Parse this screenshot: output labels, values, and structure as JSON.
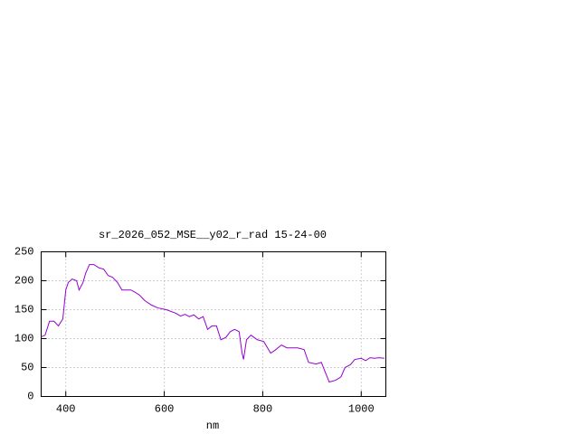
{
  "chart_data": {
    "type": "line",
    "title": "sr_2026_052_MSE__y02_r_rad 15-24-00",
    "x_label": "nm",
    "xlim": [
      350,
      1050
    ],
    "ylim": [
      0,
      250
    ],
    "xticks": [
      400,
      600,
      800,
      1000
    ],
    "yticks": [
      0,
      50,
      100,
      150,
      200,
      250
    ],
    "grid": true,
    "x": [
      350,
      358,
      367,
      376,
      385,
      394,
      400,
      405,
      413,
      422,
      427,
      435,
      440,
      448,
      457,
      468,
      477,
      486,
      495,
      505,
      514,
      532,
      541,
      550,
      560,
      574,
      587,
      604,
      623,
      633,
      642,
      651,
      660,
      670,
      679,
      688,
      697,
      706,
      715,
      725,
      734,
      743,
      752,
      758,
      761,
      767,
      776,
      789,
      802,
      816,
      825,
      838,
      849,
      871,
      884,
      893,
      908,
      919,
      926,
      935,
      948,
      959,
      967,
      978,
      987,
      1000,
      1009,
      1018,
      1027,
      1036,
      1047
    ],
    "series": [
      {
        "color": "#9400d3",
        "values": [
          103,
          106,
          130,
          130,
          122,
          134,
          184,
          197,
          203,
          200,
          184,
          197,
          212,
          228,
          228,
          222,
          220,
          209,
          206,
          197,
          184,
          184,
          180,
          175,
          166,
          158,
          153,
          150,
          144,
          139,
          142,
          138,
          141,
          134,
          138,
          116,
          122,
          122,
          98,
          102,
          112,
          116,
          112,
          75,
          64,
          98,
          106,
          98,
          95,
          75,
          80,
          89,
          84,
          84,
          81,
          59,
          56,
          59,
          44,
          25,
          28,
          34,
          50,
          55,
          64,
          66,
          62,
          67,
          66,
          67,
          66
        ]
      }
    ]
  }
}
